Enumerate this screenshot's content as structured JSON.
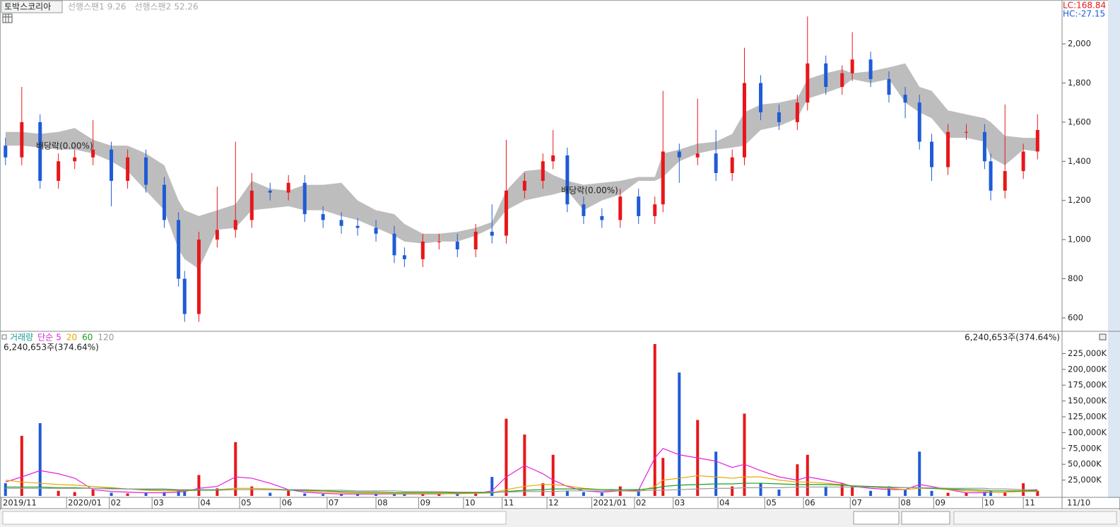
{
  "header": {
    "name": "토박스코리아",
    "lc": "LC:168.84",
    "hc": "HC:-27.15"
  },
  "chart_data": [
    {
      "type": "candlestick",
      "up_color": "#e8161a",
      "down_color": "#1f5bd6",
      "x": [
        2,
        10,
        19,
        28,
        36,
        45,
        54,
        62,
        71,
        80,
        87,
        90,
        97,
        106,
        115,
        123,
        132,
        141,
        149,
        158,
        167,
        175,
        184,
        193,
        198,
        207,
        215,
        224,
        233,
        241,
        248,
        257,
        266,
        271,
        278,
        286,
        295,
        304,
        313,
        321,
        325,
        333,
        342,
        351,
        359,
        365,
        373,
        382,
        391,
        396,
        405,
        413,
        418,
        427,
        436,
        444,
        451,
        457,
        465,
        474,
        483,
        486,
        493,
        502,
        509
      ],
      "open": [
        1480,
        1420,
        1600,
        1300,
        1400,
        1420,
        1460,
        1300,
        1420,
        1280,
        1100,
        800,
        620,
        1000,
        1050,
        1100,
        1250,
        1240,
        1290,
        1130,
        1100,
        1070,
        1060,
        1030,
        920,
        900,
        990,
        990,
        950,
        1040,
        1020,
        1250,
        1300,
        1400,
        1430,
        1180,
        1120,
        1100,
        1220,
        1120,
        1180,
        1450,
        1420,
        1440,
        1340,
        1420,
        1800,
        1650,
        1600,
        1700,
        1900,
        1780,
        1850,
        1920,
        1820,
        1740,
        1700,
        1500,
        1370,
        1550,
        1550,
        1400,
        1250,
        1350,
        1450
      ],
      "high": [
        1520,
        1780,
        1640,
        1440,
        1460,
        1610,
        1500,
        1460,
        1460,
        1320,
        1140,
        840,
        1040,
        1270,
        1500,
        1340,
        1290,
        1330,
        1330,
        1170,
        1140,
        1110,
        1100,
        1070,
        960,
        1030,
        1030,
        1030,
        1080,
        1180,
        1510,
        1340,
        1440,
        1560,
        1470,
        1220,
        1160,
        1260,
        1260,
        1220,
        1760,
        1490,
        1720,
        1560,
        1460,
        1980,
        1840,
        1690,
        1740,
        2140,
        1940,
        1890,
        2060,
        1960,
        1860,
        1780,
        1740,
        1540,
        1590,
        1590,
        1590,
        1440,
        1690,
        1490,
        1640
      ],
      "low": [
        1380,
        1380,
        1260,
        1260,
        1360,
        1380,
        1170,
        1260,
        1240,
        1060,
        760,
        580,
        580,
        960,
        1010,
        1060,
        1200,
        1200,
        1090,
        1060,
        1030,
        1020,
        990,
        880,
        860,
        860,
        950,
        910,
        910,
        980,
        980,
        1210,
        1260,
        1360,
        1140,
        1080,
        1060,
        1060,
        1080,
        1080,
        1140,
        1290,
        1380,
        1300,
        1300,
        1380,
        1610,
        1560,
        1560,
        1660,
        1740,
        1740,
        1810,
        1780,
        1700,
        1620,
        1460,
        1300,
        1330,
        1510,
        1360,
        1200,
        1210,
        1310,
        1410
      ],
      "close": [
        1420,
        1600,
        1300,
        1400,
        1420,
        1460,
        1300,
        1420,
        1280,
        1100,
        800,
        620,
        1000,
        1050,
        1100,
        1250,
        1240,
        1290,
        1130,
        1100,
        1070,
        1060,
        1030,
        920,
        900,
        990,
        990,
        950,
        1040,
        1020,
        1250,
        1300,
        1400,
        1430,
        1180,
        1120,
        1100,
        1220,
        1120,
        1180,
        1450,
        1420,
        1440,
        1340,
        1420,
        1800,
        1650,
        1600,
        1700,
        1900,
        1780,
        1850,
        1920,
        1820,
        1740,
        1700,
        1500,
        1370,
        1550,
        1550,
        1400,
        1250,
        1350,
        1450,
        1560
      ],
      "cloud": {
        "color": "#bdbdbd",
        "span1": [
          1480,
          1480,
          1470,
          1460,
          1460,
          1440,
          1400,
          1350,
          1250,
          1150,
          950,
          900,
          850,
          1050,
          1060,
          1150,
          1160,
          1170,
          1150,
          1150,
          1120,
          1100,
          1060,
          1020,
          990,
          980,
          990,
          990,
          1020,
          1060,
          1150,
          1200,
          1220,
          1230,
          1250,
          1150,
          1200,
          1230,
          1300,
          1300,
          1320,
          1400,
          1440,
          1460,
          1470,
          1480,
          1560,
          1580,
          1620,
          1720,
          1750,
          1780,
          1820,
          1800,
          1820,
          1700,
          1650,
          1620,
          1520,
          1520,
          1500,
          1420,
          1380,
          1460,
          1450
        ],
        "span2": [
          1550,
          1550,
          1540,
          1550,
          1570,
          1510,
          1480,
          1480,
          1440,
          1380,
          1200,
          1150,
          1120,
          1150,
          1180,
          1300,
          1260,
          1250,
          1280,
          1280,
          1290,
          1200,
          1150,
          1130,
          1080,
          1030,
          1030,
          1040,
          1060,
          1090,
          1250,
          1350,
          1360,
          1330,
          1300,
          1280,
          1290,
          1300,
          1320,
          1320,
          1440,
          1460,
          1490,
          1500,
          1540,
          1650,
          1690,
          1700,
          1720,
          1820,
          1850,
          1870,
          1850,
          1860,
          1880,
          1900,
          1780,
          1760,
          1660,
          1640,
          1620,
          1600,
          1530,
          1520,
          1520
        ],
        "legend": [
          {
            "name": "선행스팬1",
            "value": 9.26
          },
          {
            "name": "선행스팬2",
            "value": 52.26
          }
        ]
      },
      "annotations": [
        {
          "text": "배당락(0.00%)",
          "x": 17,
          "y": 1477
        },
        {
          "text": "배당락(0.00%)",
          "x": 275,
          "y": 1249
        }
      ],
      "xlim": [
        0,
        520
      ],
      "ylim": [
        535,
        2224
      ],
      "yticks": [
        600,
        800,
        {
          "value": 1000,
          "label": "1,000"
        },
        {
          "value": 1200,
          "label": "1,200"
        },
        {
          "value": 1400,
          "label": "1,400"
        },
        {
          "value": 1600,
          "label": "1,600"
        },
        {
          "value": 1800,
          "label": "1,800"
        },
        {
          "value": 2000,
          "label": "2,000"
        }
      ]
    },
    {
      "type": "bar",
      "series": [
        {
          "name": "거래량",
          "color": "#1a9a9a",
          "values": [
            20000,
            95000,
            115000,
            8000,
            6000,
            10000,
            5000,
            4000,
            5000,
            6000,
            8000,
            10000,
            33000,
            12000,
            85000,
            15000,
            5000,
            8000,
            4000,
            3000,
            3000,
            3000,
            3000,
            4000,
            3000,
            3000,
            3000,
            5000,
            4000,
            30000,
            122000,
            97000,
            20000,
            65000,
            8000,
            6000,
            5000,
            15000,
            10000,
            240000,
            60000,
            195000,
            120000,
            70000,
            15000,
            130000,
            20000,
            10000,
            50000,
            65000,
            15000,
            20000,
            15000,
            8000,
            15000,
            10000,
            70000,
            8000,
            5000,
            5000,
            6000,
            8000,
            5000,
            20000,
            8000
          ]
        }
      ],
      "ma_type": "단순",
      "ma": [
        {
          "name": "5",
          "color": "#e020e0",
          "values": [
            22000,
            30000,
            40000,
            35000,
            28000,
            10000,
            7000,
            6000,
            5000,
            5000,
            6000,
            7000,
            12000,
            15000,
            30000,
            28000,
            20000,
            10000,
            6000,
            4000,
            3000,
            3000,
            3000,
            3000,
            3000,
            3000,
            3000,
            4000,
            4000,
            8000,
            30000,
            48000,
            35000,
            25000,
            15000,
            8000,
            6000,
            8000,
            9000,
            60000,
            75000,
            65000,
            60000,
            55000,
            45000,
            50000,
            40000,
            30000,
            25000,
            30000,
            25000,
            20000,
            15000,
            12000,
            10000,
            10000,
            18000,
            15000,
            10000,
            5000,
            5000,
            6000,
            6000,
            8000,
            9000
          ]
        },
        {
          "name": "20",
          "color": "#e6a800",
          "values": [
            25000,
            22000,
            20000,
            18000,
            17000,
            15000,
            13000,
            11000,
            9000,
            8000,
            8000,
            8000,
            9000,
            10000,
            12000,
            12000,
            11000,
            10000,
            8000,
            6000,
            5000,
            4000,
            4000,
            3500,
            3500,
            3500,
            3500,
            3500,
            4000,
            5000,
            10000,
            15000,
            18000,
            18000,
            16000,
            12000,
            10000,
            8000,
            7000,
            15000,
            25000,
            28000,
            32000,
            30000,
            28000,
            30000,
            30000,
            25000,
            22000,
            22000,
            20000,
            18000,
            16000,
            14000,
            12000,
            10000,
            12000,
            12000,
            10000,
            8000,
            7000,
            6000,
            6000,
            7000,
            7000
          ]
        },
        {
          "name": "60",
          "color": "#1aa01a",
          "values": [
            14000,
            14000,
            14000,
            13000,
            13000,
            12000,
            12000,
            11000,
            10000,
            10000,
            9000,
            9000,
            9000,
            9000,
            10000,
            10000,
            10000,
            9000,
            9000,
            8000,
            7000,
            6000,
            6000,
            5000,
            5000,
            5000,
            5000,
            5000,
            5000,
            5000,
            7000,
            9000,
            10000,
            11000,
            11000,
            11000,
            10000,
            10000,
            10000,
            12000,
            15000,
            17000,
            18000,
            19000,
            19000,
            20000,
            20000,
            19000,
            18000,
            18000,
            18000,
            17000,
            16000,
            15000,
            14000,
            13000,
            13000,
            12000,
            11000,
            10000,
            9000,
            8000,
            8000,
            8000,
            8000
          ]
        },
        {
          "name": "120",
          "color": "#999999",
          "values": [
            12000,
            12000,
            12000,
            12000,
            12000,
            12000,
            11000,
            11000,
            11000,
            11000,
            10000,
            10000,
            10000,
            10000,
            10000,
            10000,
            10000,
            10000,
            10000,
            9000,
            9000,
            8000,
            8000,
            8000,
            7000,
            7000,
            7000,
            6000,
            6000,
            6000,
            6000,
            7000,
            7000,
            7000,
            8000,
            8000,
            8000,
            8000,
            8000,
            9000,
            9000,
            10000,
            11000,
            12000,
            12000,
            13000,
            13000,
            13000,
            14000,
            14000,
            14000,
            14000,
            14000,
            14000,
            13000,
            13000,
            13000,
            13000,
            12000,
            12000,
            12000,
            11000,
            11000,
            10000,
            10000
          ]
        }
      ],
      "info": "6,240,653주(374.64%)",
      "ylim": [
        0,
        259000
      ],
      "yticks": [
        {
          "value": 25000,
          "label": "25,000K"
        },
        {
          "value": 50000,
          "label": "50,000K"
        },
        {
          "value": 75000,
          "label": "75,000K"
        },
        {
          "value": 100000,
          "label": "100,000K"
        },
        {
          "value": 125000,
          "label": "125,000K"
        },
        {
          "value": 150000,
          "label": "150,000K"
        },
        {
          "value": 175000,
          "label": "175,000K"
        },
        {
          "value": 200000,
          "label": "200,000K"
        },
        {
          "value": 225000,
          "label": "225,000K"
        }
      ],
      "xlim": [
        0,
        520
      ],
      "xticks": [
        {
          "value": 0,
          "label": "2019/11"
        },
        {
          "value": 32,
          "label": "2020/01"
        },
        {
          "value": 53,
          "label": "02"
        },
        {
          "value": 74,
          "label": "03"
        },
        {
          "value": 97,
          "label": "04"
        },
        {
          "value": 117,
          "label": "05"
        },
        {
          "value": 137,
          "label": "06"
        },
        {
          "value": 160,
          "label": "07"
        },
        {
          "value": 184,
          "label": "08"
        },
        {
          "value": 205,
          "label": "09"
        },
        {
          "value": 227,
          "label": "10"
        },
        {
          "value": 246,
          "label": "11"
        },
        {
          "value": 268,
          "label": "12"
        },
        {
          "value": 290,
          "label": "2021/01"
        },
        {
          "value": 311,
          "label": "02"
        },
        {
          "value": 330,
          "label": "03"
        },
        {
          "value": 352,
          "label": "04"
        },
        {
          "value": 375,
          "label": "05"
        },
        {
          "value": 394,
          "label": "06"
        },
        {
          "value": 417,
          "label": "07"
        },
        {
          "value": 441,
          "label": "08"
        },
        {
          "value": 458,
          "label": "09"
        },
        {
          "value": 482,
          "label": "10"
        },
        {
          "value": 502,
          "label": "11"
        }
      ],
      "last_date": "11/10"
    }
  ]
}
